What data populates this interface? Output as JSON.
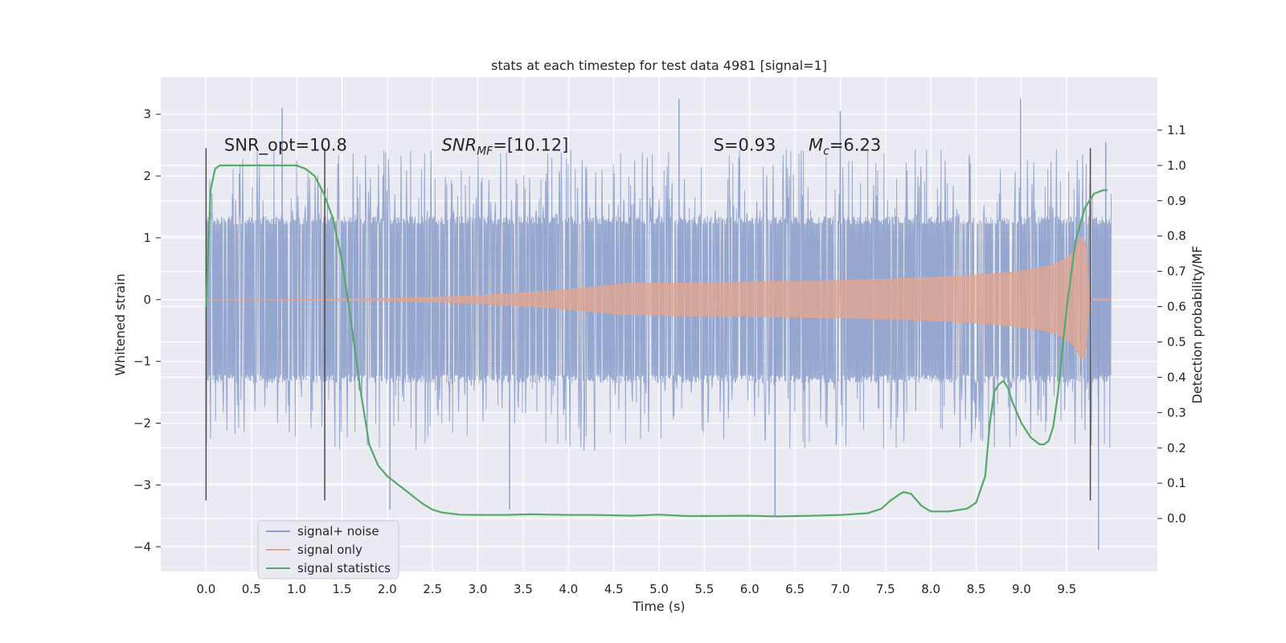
{
  "chart_data": {
    "type": "line",
    "title": "stats at each timestep for test data 4981 [signal=1]",
    "xlabel": "Time (s)",
    "ylabel": "Whitened strain",
    "y2label": "Detection probability/MF",
    "xlim": [
      -0.5,
      10.5
    ],
    "ylim": [
      -4.4,
      3.6
    ],
    "y2lim": [
      -0.15,
      1.25
    ],
    "xticks": [
      "0.0",
      "0.5",
      "1.0",
      "1.5",
      "2.0",
      "2.5",
      "3.0",
      "3.5",
      "4.0",
      "4.5",
      "5.0",
      "5.5",
      "6.0",
      "6.5",
      "7.0",
      "7.5",
      "8.0",
      "8.5",
      "9.0",
      "9.5"
    ],
    "xtick_values": [
      0,
      0.5,
      1,
      1.5,
      2,
      2.5,
      3,
      3.5,
      4,
      4.5,
      5,
      5.5,
      6,
      6.5,
      7,
      7.5,
      8,
      8.5,
      9,
      9.5
    ],
    "yticks": [
      "3",
      "2",
      "1",
      "0",
      "−1",
      "−2",
      "−3",
      "−4"
    ],
    "ytick_values": [
      3,
      2,
      1,
      0,
      -1,
      -2,
      -3,
      -4
    ],
    "y2ticks": [
      "1.1",
      "1.0",
      "0.9",
      "0.8",
      "0.7",
      "0.6",
      "0.5",
      "0.4",
      "0.3",
      "0.2",
      "0.1",
      "0.0"
    ],
    "y2tick_values": [
      1.1,
      1.0,
      0.9,
      0.8,
      0.7,
      0.6,
      0.5,
      0.4,
      0.3,
      0.2,
      0.1,
      0.0
    ],
    "grid": true,
    "legend_position": "lower-left",
    "vertical_lines": [
      {
        "x": 0.0,
        "y_range": [
          -3.25,
          2.45
        ]
      },
      {
        "x": 1.31,
        "y_range": [
          -3.25,
          2.45
        ]
      },
      {
        "x": 9.76,
        "y_range": [
          -3.25,
          2.45
        ]
      }
    ],
    "annotations": [
      {
        "text": "SNR_opt=10.8",
        "x": 0.2,
        "y": 2.5
      },
      {
        "text": "SNR_MF=[10.12]",
        "x": 2.6,
        "y": 2.5
      },
      {
        "text": "S=0.93",
        "x": 5.6,
        "y": 2.5
      },
      {
        "text": "M_c=6.23",
        "x": 6.65,
        "y": 2.5
      }
    ],
    "series": [
      {
        "name": "signal+ noise",
        "axis": "left",
        "color": "#8da0cb",
        "x_range": [
          0.0,
          9.99
        ],
        "envelope_upper": 1.35,
        "envelope_lower": -1.35,
        "notable_peaks": [
          {
            "x": 0.84,
            "y": 3.1
          },
          {
            "x": 5.22,
            "y": 3.25
          },
          {
            "x": 7.0,
            "y": 3.05
          },
          {
            "x": 8.99,
            "y": 3.25
          },
          {
            "x": 9.93,
            "y": 2.55
          },
          {
            "x": 2.03,
            "y": -3.4
          },
          {
            "x": 3.35,
            "y": -3.4
          },
          {
            "x": 6.28,
            "y": -3.5
          },
          {
            "x": 9.85,
            "y": -4.05
          }
        ]
      },
      {
        "name": "signal only",
        "axis": "left",
        "color": "#e5a48c",
        "t_coalescence": 9.7,
        "peak_amplitude": 1.0,
        "x_range": [
          0.0,
          9.99
        ]
      },
      {
        "name": "signal statistics",
        "axis": "right",
        "color": "#55a868",
        "x": [
          0.0,
          0.05,
          0.1,
          0.15,
          0.3,
          0.5,
          0.75,
          1.0,
          1.1,
          1.2,
          1.3,
          1.4,
          1.5,
          1.6,
          1.7,
          1.8,
          1.9,
          2.0,
          2.1,
          2.2,
          2.3,
          2.4,
          2.5,
          2.6,
          2.8,
          3.0,
          3.3,
          3.6,
          4.0,
          4.3,
          4.7,
          5.0,
          5.3,
          5.6,
          6.0,
          6.3,
          6.7,
          7.0,
          7.3,
          7.45,
          7.55,
          7.65,
          7.7,
          7.78,
          7.9,
          8.0,
          8.2,
          8.4,
          8.5,
          8.6,
          8.65,
          8.7,
          8.75,
          8.8,
          8.85,
          8.9,
          9.0,
          9.1,
          9.2,
          9.25,
          9.3,
          9.35,
          9.4,
          9.5,
          9.6,
          9.7,
          9.8,
          9.9,
          9.95
        ],
        "values": [
          0.6,
          0.93,
          0.99,
          1.0,
          1.0,
          1.0,
          1.0,
          1.0,
          0.99,
          0.97,
          0.92,
          0.85,
          0.73,
          0.56,
          0.37,
          0.21,
          0.15,
          0.12,
          0.1,
          0.08,
          0.06,
          0.04,
          0.025,
          0.017,
          0.011,
          0.01,
          0.01,
          0.012,
          0.01,
          0.01,
          0.008,
          0.011,
          0.007,
          0.007,
          0.008,
          0.006,
          0.008,
          0.01,
          0.015,
          0.027,
          0.05,
          0.068,
          0.075,
          0.07,
          0.035,
          0.02,
          0.02,
          0.028,
          0.045,
          0.12,
          0.27,
          0.36,
          0.38,
          0.39,
          0.37,
          0.33,
          0.27,
          0.23,
          0.21,
          0.21,
          0.22,
          0.26,
          0.35,
          0.6,
          0.79,
          0.88,
          0.92,
          0.93,
          0.93
        ]
      }
    ]
  }
}
